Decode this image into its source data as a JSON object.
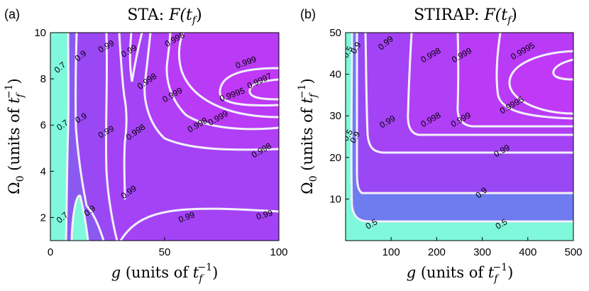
{
  "colors": {
    "level_below_0_5": "#7ff8dc",
    "level_0_5": "#6f7cf0",
    "level_0_7": "#8a5af0",
    "level_0_9": "#9a48f4",
    "level_0_99": "#a443f6",
    "level_0_998": "#b03ff6",
    "level_0_999": "#b93bf6",
    "contour_line": "#f2f0fa"
  },
  "chart_data": [
    {
      "type": "contour",
      "panel_label": "(a)",
      "title_prefix": "STA: ",
      "title_math": "F(t",
      "title_sub": "f",
      "title_suffix": ")",
      "xlabel_var": "g",
      "xlabel_text": " (units of ",
      "ylabel_var": "Ω",
      "ylabel_var_sub": "0",
      "ylabel_text": " (units of ",
      "unit_base": "t",
      "unit_sub": "f",
      "unit_sup": "−1",
      "unit_close": ")",
      "xlim": [
        0,
        100
      ],
      "ylim": [
        1,
        10
      ],
      "xticks": [
        0,
        50,
        100
      ],
      "yticks": [
        2,
        4,
        6,
        8,
        10
      ],
      "contour_levels": [
        0.7,
        0.9,
        0.99,
        0.998,
        0.999,
        0.9995,
        0.9997
      ],
      "contour_labels": [
        {
          "text": "0.7",
          "x": 5,
          "y": 8.4,
          "rot": -40
        },
        {
          "text": "0.9",
          "x": 14,
          "y": 8.9,
          "rot": -40
        },
        {
          "text": "0.99",
          "x": 25,
          "y": 9.3,
          "rot": -30
        },
        {
          "text": "0.99",
          "x": 35,
          "y": 9.1,
          "rot": -30
        },
        {
          "text": "0.998",
          "x": 55,
          "y": 9.6,
          "rot": -30
        },
        {
          "text": "0.998",
          "x": 43,
          "y": 7.8,
          "rot": -35
        },
        {
          "text": "0.999",
          "x": 54,
          "y": 7.2,
          "rot": -30
        },
        {
          "text": "0.999",
          "x": 86,
          "y": 8.6,
          "rot": -20
        },
        {
          "text": "0.9995",
          "x": 80,
          "y": 7.2,
          "rot": -20
        },
        {
          "text": "0.9997",
          "x": 92,
          "y": 7.8,
          "rot": -25
        },
        {
          "text": "0.7",
          "x": 6,
          "y": 5.9,
          "rot": -35
        },
        {
          "text": "0.9",
          "x": 14,
          "y": 6.2,
          "rot": -30
        },
        {
          "text": "0.99",
          "x": 25,
          "y": 5.6,
          "rot": -30
        },
        {
          "text": "0.998",
          "x": 38,
          "y": 5.6,
          "rot": -35
        },
        {
          "text": "0.998",
          "x": 65,
          "y": 5.9,
          "rot": -30
        },
        {
          "text": "0.999",
          "x": 74,
          "y": 6.2,
          "rot": -30
        },
        {
          "text": "0.998",
          "x": 93,
          "y": 4.8,
          "rot": -30
        },
        {
          "text": "0.99",
          "x": 35,
          "y": 3.0,
          "rot": -35
        },
        {
          "text": "0.9",
          "x": 18,
          "y": 2.2,
          "rot": -40
        },
        {
          "text": "0.99",
          "x": 60,
          "y": 1.9,
          "rot": -20
        },
        {
          "text": "0.99",
          "x": 94,
          "y": 2.0,
          "rot": -15
        },
        {
          "text": "0.7",
          "x": 6,
          "y": 1.9,
          "rot": -40
        }
      ]
    },
    {
      "type": "contour",
      "panel_label": "(b)",
      "title_prefix": "STIRAP: ",
      "title_math": "F(t",
      "title_sub": "f",
      "title_suffix": ")",
      "xlabel_var": "g",
      "xlabel_text": " (units of ",
      "ylabel_var": "Ω",
      "ylabel_var_sub": "0",
      "ylabel_text": " (units of ",
      "unit_base": "t",
      "unit_sub": "f",
      "unit_sup": "−1",
      "unit_close": ")",
      "xlim": [
        0,
        500
      ],
      "ylim": [
        0,
        50
      ],
      "xticks": [
        100,
        200,
        300,
        400,
        500
      ],
      "yticks": [
        10,
        20,
        30,
        40,
        50
      ],
      "contour_levels": [
        0.5,
        0.9,
        0.99,
        0.998,
        0.999,
        0.9995
      ],
      "contour_labels": [
        {
          "text": "0.5",
          "x": 10,
          "y": 45,
          "rot": -60
        },
        {
          "text": "0.9",
          "x": 28,
          "y": 46,
          "rot": -60
        },
        {
          "text": "0.99",
          "x": 92,
          "y": 47,
          "rot": -40
        },
        {
          "text": "0.998",
          "x": 190,
          "y": 44,
          "rot": -30
        },
        {
          "text": "0.999",
          "x": 258,
          "y": 44,
          "rot": -30
        },
        {
          "text": "0.9995",
          "x": 392,
          "y": 45,
          "rot": -30
        },
        {
          "text": "0.9995",
          "x": 368,
          "y": 32,
          "rot": -30
        },
        {
          "text": "0.998",
          "x": 190,
          "y": 28.5,
          "rot": -30
        },
        {
          "text": "0.999",
          "x": 256,
          "y": 28.5,
          "rot": -30
        },
        {
          "text": "0.99",
          "x": 95,
          "y": 28,
          "rot": -30
        },
        {
          "text": "0.5",
          "x": 10,
          "y": 25,
          "rot": -60
        },
        {
          "text": "0.9",
          "x": 26,
          "y": 24.5,
          "rot": -60
        },
        {
          "text": "0.99",
          "x": 346,
          "y": 21,
          "rot": -30
        },
        {
          "text": "0.9",
          "x": 302,
          "y": 11,
          "rot": -40
        },
        {
          "text": "0.5",
          "x": 60,
          "y": 3.4,
          "rot": -30
        },
        {
          "text": "0.5",
          "x": 345,
          "y": 3.4,
          "rot": -30
        }
      ]
    }
  ]
}
